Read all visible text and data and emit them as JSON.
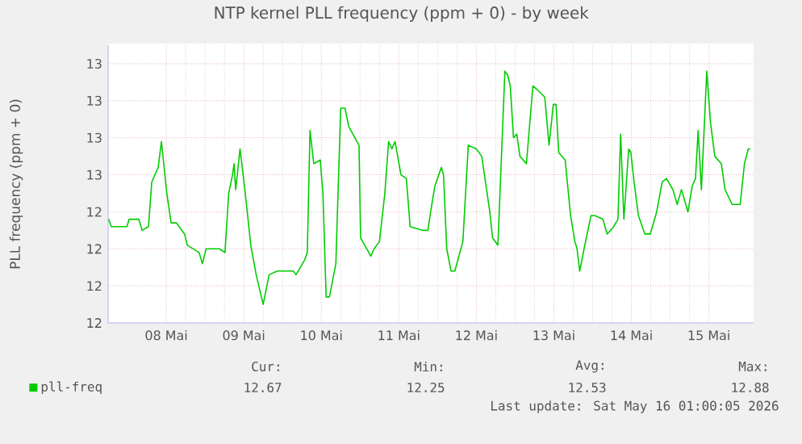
{
  "chart_data": {
    "type": "line",
    "title": "NTP kernel PLL frequency (ppm + 0) - by week",
    "ylabel": "PLL frequency (ppm + 0)",
    "x": [
      "2026-05-07T18:10",
      "2026-05-07T19:00",
      "2026-05-07T23:50",
      "2026-05-08T00:30",
      "2026-05-08T03:30",
      "2026-05-08T04:30",
      "2026-05-08T06:30",
      "2026-05-08T07:30",
      "2026-05-08T09:30",
      "2026-05-08T10:30",
      "2026-05-08T12:10",
      "2026-05-08T13:30",
      "2026-05-08T15:10",
      "2026-05-08T17:40",
      "2026-05-08T18:30",
      "2026-05-08T22:10",
      "2026-05-08T23:10",
      "2026-05-09T00:20",
      "2026-05-09T04:30",
      "2026-05-09T06:10",
      "2026-05-09T07:20",
      "2026-05-09T08:30",
      "2026-05-09T09:00",
      "2026-05-09T09:30",
      "2026-05-09T10:50",
      "2026-05-09T12:20",
      "2026-05-09T14:10",
      "2026-05-09T15:50",
      "2026-05-09T18:00",
      "2026-05-09T19:50",
      "2026-05-09T22:20",
      "2026-05-10T03:20",
      "2026-05-10T04:10",
      "2026-05-10T06:50",
      "2026-05-10T07:40",
      "2026-05-10T08:30",
      "2026-05-10T09:40",
      "2026-05-10T11:40",
      "2026-05-10T12:30",
      "2026-05-10T13:30",
      "2026-05-10T14:30",
      "2026-05-10T16:30",
      "2026-05-10T18:00",
      "2026-05-10T19:20",
      "2026-05-10T20:30",
      "2026-05-10T23:40",
      "2026-05-11T00:10",
      "2026-05-11T03:20",
      "2026-05-11T04:20",
      "2026-05-11T06:00",
      "2026-05-11T07:40",
      "2026-05-11T08:50",
      "2026-05-11T09:50",
      "2026-05-11T10:50",
      "2026-05-11T12:40",
      "2026-05-11T14:20",
      "2026-05-11T15:30",
      "2026-05-11T19:20",
      "2026-05-11T21:00",
      "2026-05-11T21:50",
      "2026-05-11T23:10",
      "2026-05-12T01:10",
      "2026-05-12T01:50",
      "2026-05-12T02:50",
      "2026-05-12T04:10",
      "2026-05-12T05:20",
      "2026-05-12T07:50",
      "2026-05-12T09:30",
      "2026-05-12T12:00",
      "2026-05-12T13:40",
      "2026-05-12T16:10",
      "2026-05-12T17:00",
      "2026-05-12T18:40",
      "2026-05-12T20:50",
      "2026-05-12T21:40",
      "2026-05-12T22:30",
      "2026-05-12T23:30",
      "2026-05-13T00:30",
      "2026-05-13T01:30",
      "2026-05-13T03:30",
      "2026-05-13T05:30",
      "2026-05-13T06:50",
      "2026-05-13T09:10",
      "2026-05-13T10:30",
      "2026-05-13T11:50",
      "2026-05-13T12:40",
      "2026-05-13T13:30",
      "2026-05-13T15:30",
      "2026-05-13T17:10",
      "2026-05-13T18:30",
      "2026-05-13T19:10",
      "2026-05-13T20:00",
      "2026-05-13T21:20",
      "2026-05-13T23:30",
      "2026-05-14T00:40",
      "2026-05-14T03:10",
      "2026-05-14T04:30",
      "2026-05-14T06:30",
      "2026-05-14T07:50",
      "2026-05-14T08:40",
      "2026-05-14T09:40",
      "2026-05-14T11:10",
      "2026-05-14T11:50",
      "2026-05-14T12:50",
      "2026-05-14T14:10",
      "2026-05-14T16:10",
      "2026-05-14T17:50",
      "2026-05-14T19:50",
      "2026-05-14T21:30",
      "2026-05-14T22:50",
      "2026-05-15T00:50",
      "2026-05-15T02:10",
      "2026-05-15T03:30",
      "2026-05-15T05:30",
      "2026-05-15T06:50",
      "2026-05-15T07:50",
      "2026-05-15T08:40",
      "2026-05-15T09:40",
      "2026-05-15T11:20",
      "2026-05-15T12:30",
      "2026-05-15T13:50",
      "2026-05-15T15:50",
      "2026-05-15T17:00",
      "2026-05-15T19:10",
      "2026-05-15T21:40",
      "2026-05-15T23:00",
      "2026-05-16T00:10",
      "2026-05-16T00:50"
    ],
    "series": [
      {
        "name": "pll-freq",
        "color": "#00cc00",
        "values": [
          12.48,
          12.46,
          12.46,
          12.48,
          12.48,
          12.45,
          12.46,
          12.58,
          12.62,
          12.69,
          12.55,
          12.47,
          12.47,
          12.44,
          12.41,
          12.39,
          12.36,
          12.4,
          12.4,
          12.39,
          12.55,
          12.6,
          12.63,
          12.56,
          12.67,
          12.56,
          12.41,
          12.33,
          12.25,
          12.33,
          12.34,
          12.34,
          12.33,
          12.37,
          12.39,
          12.72,
          12.63,
          12.64,
          12.55,
          12.27,
          12.27,
          12.36,
          12.78,
          12.78,
          12.73,
          12.68,
          12.43,
          12.38,
          12.4,
          12.42,
          12.55,
          12.69,
          12.67,
          12.69,
          12.6,
          12.59,
          12.46,
          12.45,
          12.45,
          12.5,
          12.57,
          12.62,
          12.6,
          12.4,
          12.34,
          12.34,
          12.42,
          12.68,
          12.67,
          12.65,
          12.5,
          12.43,
          12.41,
          12.88,
          12.87,
          12.84,
          12.7,
          12.71,
          12.65,
          12.63,
          12.84,
          12.83,
          12.81,
          12.68,
          12.79,
          12.79,
          12.66,
          12.64,
          12.49,
          12.42,
          12.4,
          12.34,
          12.4,
          12.49,
          12.49,
          12.48,
          12.44,
          12.46,
          12.48,
          12.71,
          12.48,
          12.67,
          12.66,
          12.58,
          12.49,
          12.44,
          12.44,
          12.5,
          12.58,
          12.59,
          12.56,
          12.52,
          12.56,
          12.5,
          12.57,
          12.59,
          12.72,
          12.56,
          12.88,
          12.74,
          12.65,
          12.63,
          12.56,
          12.52,
          12.52,
          12.63,
          12.67,
          12.67
        ]
      }
    ],
    "xlim": [
      "2026-05-07T18:00",
      "2026-05-16T01:50"
    ],
    "xticks": [
      {
        "value": "2026-05-08T12:00",
        "label": "08 Mai"
      },
      {
        "value": "2026-05-09T12:00",
        "label": "09 Mai"
      },
      {
        "value": "2026-05-10T12:00",
        "label": "10 Mai"
      },
      {
        "value": "2026-05-11T12:00",
        "label": "11 Mai"
      },
      {
        "value": "2026-05-12T12:00",
        "label": "12 Mai"
      },
      {
        "value": "2026-05-13T12:00",
        "label": "13 Mai"
      },
      {
        "value": "2026-05-14T12:00",
        "label": "14 Mai"
      },
      {
        "value": "2026-05-15T12:00",
        "label": "15 Mai"
      }
    ],
    "ylim": [
      12.2,
      12.95
    ],
    "yticks": [
      {
        "value": 12.2,
        "label": "12"
      },
      {
        "value": 12.3,
        "label": "12"
      },
      {
        "value": 12.4,
        "label": "12"
      },
      {
        "value": 12.5,
        "label": "12"
      },
      {
        "value": 12.6,
        "label": "13"
      },
      {
        "value": 12.7,
        "label": "13"
      },
      {
        "value": 12.8,
        "label": "13"
      },
      {
        "value": 12.9,
        "label": "13"
      }
    ],
    "grid": true,
    "legend": "bottom",
    "marker": "none",
    "line_style": "solid",
    "annotations": [
      "Cur:",
      "12.67",
      "Min:",
      "12.25",
      "Avg:",
      "12.53",
      "Max:",
      "12.88",
      "Last update: Sat May 16 01:00:05 2026"
    ]
  }
}
